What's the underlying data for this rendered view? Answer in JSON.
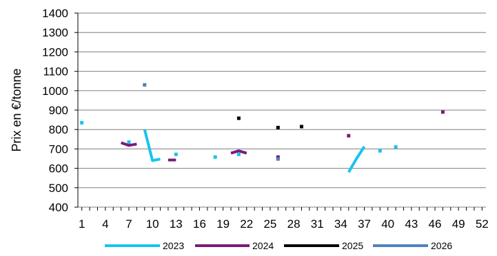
{
  "chart_data": {
    "type": "line",
    "ylabel": "Prix en €/tonne",
    "xlabel": "",
    "title": "",
    "ylim": [
      400,
      1400
    ],
    "ytick_step": 100,
    "xlim": [
      0.5,
      52.5
    ],
    "x_tick_labels": [
      1,
      4,
      7,
      10,
      13,
      16,
      19,
      22,
      25,
      28,
      31,
      34,
      37,
      40,
      43,
      46,
      49,
      52
    ],
    "grid": "horizontal",
    "legend_position": "bottom",
    "series": [
      {
        "name": "2023",
        "color": "#19c3ef",
        "points": [
          [
            1,
            835
          ],
          [
            7,
            735
          ],
          [
            9,
            800
          ],
          [
            10,
            640
          ],
          [
            11,
            648
          ],
          [
            13,
            672
          ],
          [
            18,
            658
          ],
          [
            21,
            672
          ],
          [
            26,
            650
          ],
          [
            35,
            580
          ],
          [
            36,
            650
          ],
          [
            37,
            712
          ],
          [
            39,
            690
          ],
          [
            41,
            710
          ]
        ]
      },
      {
        "name": "2024",
        "color": "#7a1a7a",
        "points": [
          [
            6,
            732
          ],
          [
            7,
            718
          ],
          [
            8,
            725
          ],
          [
            12,
            643
          ],
          [
            13,
            643
          ],
          [
            20,
            678
          ],
          [
            21,
            690
          ],
          [
            22,
            678
          ],
          [
            26,
            658
          ],
          [
            35,
            768
          ],
          [
            47,
            890
          ]
        ]
      },
      {
        "name": "2025",
        "color": "#000000",
        "points": [
          [
            21,
            858
          ],
          [
            26,
            810
          ],
          [
            29,
            815
          ]
        ]
      },
      {
        "name": "2026",
        "color": "#4f81bd",
        "points": [
          [
            9,
            1030
          ],
          [
            26,
            648
          ]
        ]
      }
    ]
  }
}
